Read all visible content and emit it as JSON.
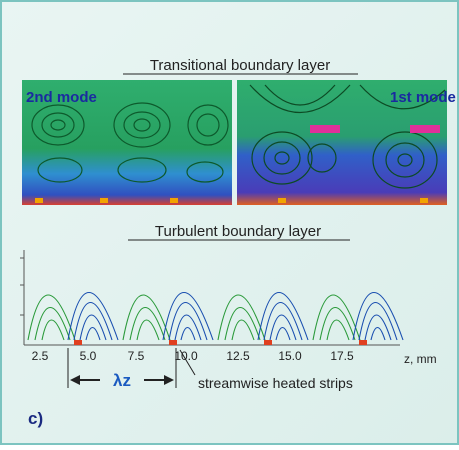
{
  "header": {
    "title_top": "Transitional boundary layer",
    "title_bottom": "Turbulent boundary layer"
  },
  "panels": {
    "left_label": "2nd mode",
    "right_label": "1st mode"
  },
  "axis": {
    "ticks": [
      "2.5",
      "5.0",
      "7.5",
      "10.0",
      "12.5",
      "15.0",
      "17.5"
    ],
    "unit": "z, mm"
  },
  "annotations": {
    "wavelength": "λz",
    "strips": "streamwise heated strips"
  },
  "figure_label": "c)"
}
